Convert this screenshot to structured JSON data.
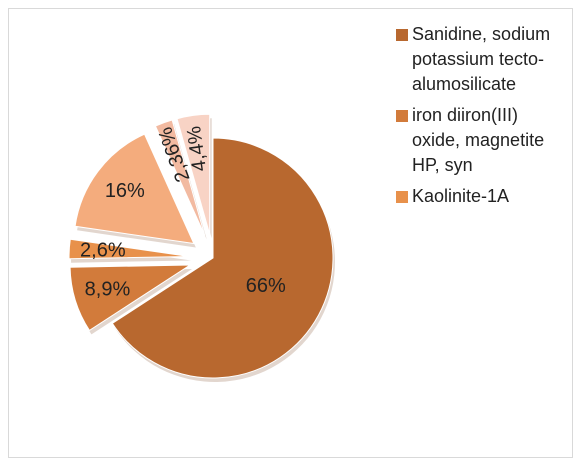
{
  "chart_data": {
    "type": "pie",
    "categories": [
      "Sanidine, sodium potassium tecto-alumosilicate",
      "iron diiron(III) oxide, magnetite HP, syn",
      "Kaolinite-1A",
      null,
      null,
      null
    ],
    "values": [
      66,
      8.9,
      2.6,
      16,
      2.36,
      4.4
    ],
    "value_labels": [
      "66%",
      "8,9%",
      "2,6%",
      "16%",
      "2,36%",
      "4,4%"
    ],
    "colors": [
      "#b8682f",
      "#d27b3b",
      "#e8914b",
      "#f4ac7d",
      "#f2baa1",
      "#f8d3c5"
    ],
    "exploded": true,
    "legend": "right"
  }
}
